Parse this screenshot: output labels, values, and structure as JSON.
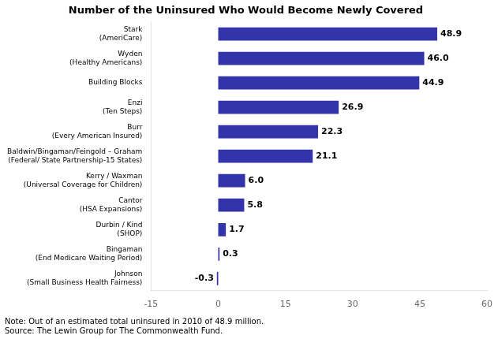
{
  "chart_data": {
    "type": "bar",
    "orientation": "horizontal",
    "title": "Number of the Uninsured Who Would Become Newly Covered",
    "categories": [
      [
        "Johnson",
        "(Small Business Health Fairness)"
      ],
      [
        "Bingaman",
        "(End Medicare Waiting Period)"
      ],
      [
        "Durbin / Kind",
        "(SHOP)"
      ],
      [
        "Cantor",
        "(HSA Expansions)"
      ],
      [
        "Kerry / Waxman",
        "(Universal Coverage for Children)"
      ],
      [
        "Baldwin/Bingaman/Feingold – Graham",
        "(Federal/ State Partnership-15 States)"
      ],
      [
        "Burr",
        "(Every American Insured)"
      ],
      [
        "Enzi",
        "(Ten Steps)"
      ],
      "Building Blocks",
      [
        "Wyden",
        "(Healthy Americans)"
      ],
      [
        "Stark",
        "(AmeriCare)"
      ]
    ],
    "values": [
      -0.3,
      0.3,
      1.7,
      5.8,
      6.0,
      21.1,
      22.3,
      26.9,
      44.9,
      46.0,
      48.9
    ],
    "value_labels": [
      "-0.3",
      "0.3",
      "1.7",
      "5.8",
      "6.0",
      "21.1",
      "22.3",
      "26.9",
      "44.9",
      "46.0",
      "48.9"
    ],
    "data_labels": true,
    "color": "#3333aa",
    "xlim": [
      -15,
      60
    ],
    "xticks": [
      -15,
      0,
      15,
      30,
      45,
      60
    ],
    "grid": false,
    "annotations": [
      "Note: Out of an estimated total uninsured in 2010 of 48.9 million.",
      "Source: The Lewin Group for The Commonwealth Fund."
    ]
  }
}
